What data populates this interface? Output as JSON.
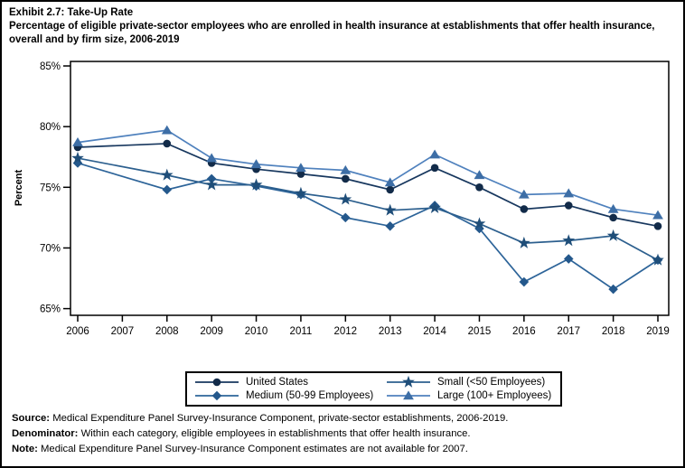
{
  "title": {
    "line1": "Exhibit 2.7: Take-Up Rate",
    "line2": "Percentage of eligible private-sector employees who are enrolled in health insurance at establishments that offer health insurance, overall and by firm size, 2006-2019"
  },
  "chart_data": {
    "type": "line",
    "title": "Take-Up Rate by firm size, 2006-2019",
    "ylabel": "Percent",
    "xlabel": "",
    "ylim": [
      65,
      85
    ],
    "grid": false,
    "note": "Estimates are not available for 2007; lines connect 2006 directly to 2008.",
    "x": [
      2006,
      2008,
      2009,
      2010,
      2011,
      2012,
      2013,
      2014,
      2015,
      2016,
      2017,
      2018,
      2019
    ],
    "axis": {
      "x_tick_values": [
        2006,
        2007,
        2008,
        2009,
        2010,
        2011,
        2012,
        2013,
        2014,
        2015,
        2016,
        2017,
        2018,
        2019
      ],
      "x_tick_labels": [
        "2006",
        "2007",
        "2008",
        "2009",
        "2010",
        "2011",
        "2012",
        "2013",
        "2014",
        "2015",
        "2016",
        "2017",
        "2018",
        "2019"
      ],
      "y_tick_values": [
        85,
        80,
        75,
        70,
        65
      ],
      "y_tick_labels": [
        "85%",
        "80%",
        "75%",
        "70%",
        "65%"
      ]
    },
    "series": [
      {
        "name": "United States",
        "marker": "circle",
        "line_color": "#17375e",
        "marker_color": "#122b49",
        "values": [
          78.3,
          78.6,
          77.0,
          76.5,
          76.1,
          75.7,
          74.8,
          76.6,
          75.0,
          73.2,
          73.5,
          72.5,
          71.8
        ]
      },
      {
        "name": "Medium (50-99 Employees)",
        "marker": "diamond",
        "line_color": "#2d6499",
        "marker_color": "#24588c",
        "values": [
          77.0,
          74.8,
          75.7,
          75.1,
          74.4,
          72.5,
          71.8,
          73.5,
          71.6,
          67.2,
          69.1,
          66.6,
          69.0
        ]
      },
      {
        "name": "Small (<50 Employees)",
        "marker": "star",
        "line_color": "#2c5f8e",
        "marker_color": "#1f4e79",
        "values": [
          77.4,
          76.0,
          75.2,
          75.2,
          74.5,
          74.0,
          73.1,
          73.3,
          72.0,
          70.4,
          70.6,
          71.0,
          69.0
        ]
      },
      {
        "name": "Large (100+ Employees)",
        "marker": "triangle",
        "line_color": "#4f81bd",
        "marker_color": "#3d6ea6",
        "values": [
          78.7,
          79.7,
          77.4,
          76.9,
          76.6,
          76.4,
          75.4,
          77.7,
          76.0,
          74.4,
          74.5,
          73.2,
          72.7
        ]
      }
    ]
  },
  "legend": {
    "items": [
      {
        "label": "United States",
        "marker": "circle",
        "color": "#122b49",
        "line_color": "#17375e"
      },
      {
        "label": "Small (<50 Employees)",
        "marker": "star",
        "color": "#1f4e79",
        "line_color": "#2c5f8e"
      },
      {
        "label": "Medium (50-99 Employees)",
        "marker": "diamond",
        "color": "#24588c",
        "line_color": "#2d6499"
      },
      {
        "label": "Large (100+ Employees)",
        "marker": "triangle",
        "color": "#3d6ea6",
        "line_color": "#4f81bd"
      }
    ]
  },
  "footer": {
    "source_label": "Source:",
    "source_text": " Medical Expenditure Panel Survey-Insurance Component, private-sector establishments, 2006-2019.",
    "denominator_label": "Denominator:",
    "denominator_text": " Within each category, eligible employees in establishments that offer health insurance.",
    "note_label": "Note:",
    "note_text": " Medical Expenditure Panel Survey-Insurance Component estimates are not available for 2007."
  }
}
